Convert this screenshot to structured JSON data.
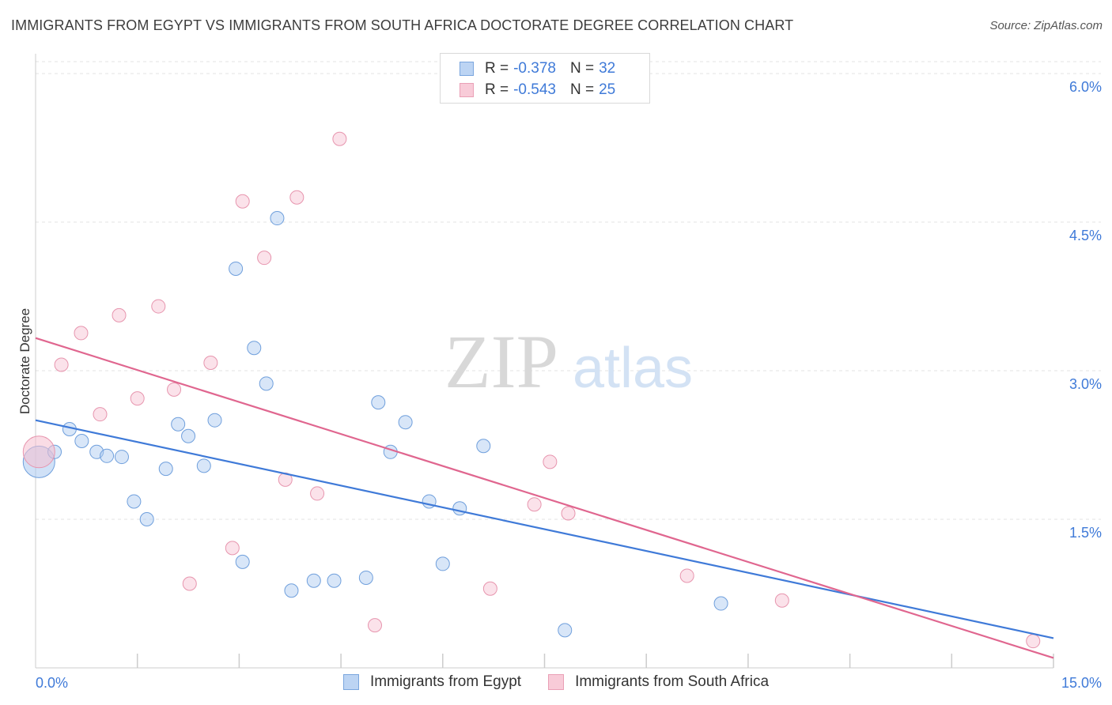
{
  "chart_data": {
    "type": "scatter",
    "title": "IMMIGRANTS FROM EGYPT VS IMMIGRANTS FROM SOUTH AFRICA DOCTORATE DEGREE CORRELATION CHART",
    "source": "Source: ZipAtlas.com",
    "watermark": {
      "zip": "ZIP",
      "atlas": "atlas"
    },
    "xlabel": "",
    "ylabel": "Doctorate Degree",
    "xlim": [
      0,
      15
    ],
    "ylim": [
      0,
      6.2
    ],
    "x_tick_labels": {
      "left": "0.0%",
      "right": "15.0%"
    },
    "y_ticks": [
      {
        "value": 1.5,
        "label": "1.5%"
      },
      {
        "value": 3.0,
        "label": "3.0%"
      },
      {
        "value": 4.5,
        "label": "4.5%"
      },
      {
        "value": 6.0,
        "label": "6.0%"
      }
    ],
    "series": [
      {
        "name": "Immigrants from Egypt",
        "color": "#a9c8f0",
        "stroke": "#6f9fdc",
        "line_color": "#3f7ad8",
        "R": "-0.378",
        "N": "32",
        "trend": {
          "x0": 0.0,
          "y0": 2.5,
          "x1": 15.0,
          "y1": 0.3
        },
        "points": [
          {
            "x": 0.05,
            "y": 2.08,
            "big": true
          },
          {
            "x": 0.28,
            "y": 2.18
          },
          {
            "x": 0.5,
            "y": 2.41
          },
          {
            "x": 0.68,
            "y": 2.29
          },
          {
            "x": 0.9,
            "y": 2.18
          },
          {
            "x": 1.05,
            "y": 2.14
          },
          {
            "x": 1.27,
            "y": 2.13
          },
          {
            "x": 1.45,
            "y": 1.68
          },
          {
            "x": 1.64,
            "y": 1.5
          },
          {
            "x": 1.92,
            "y": 2.01
          },
          {
            "x": 2.1,
            "y": 2.46
          },
          {
            "x": 2.25,
            "y": 2.34
          },
          {
            "x": 2.48,
            "y": 2.04
          },
          {
            "x": 2.64,
            "y": 2.5
          },
          {
            "x": 2.95,
            "y": 4.03
          },
          {
            "x": 3.05,
            "y": 1.07
          },
          {
            "x": 3.22,
            "y": 3.23
          },
          {
            "x": 3.4,
            "y": 2.87
          },
          {
            "x": 3.56,
            "y": 4.54
          },
          {
            "x": 3.77,
            "y": 0.78
          },
          {
            "x": 4.1,
            "y": 0.88
          },
          {
            "x": 4.4,
            "y": 0.88
          },
          {
            "x": 4.87,
            "y": 0.91
          },
          {
            "x": 5.05,
            "y": 2.68
          },
          {
            "x": 5.23,
            "y": 2.18
          },
          {
            "x": 5.45,
            "y": 2.48
          },
          {
            "x": 5.8,
            "y": 1.68
          },
          {
            "x": 6.0,
            "y": 1.05
          },
          {
            "x": 6.25,
            "y": 1.61
          },
          {
            "x": 6.6,
            "y": 2.24
          },
          {
            "x": 7.8,
            "y": 0.38
          },
          {
            "x": 10.1,
            "y": 0.65
          }
        ]
      },
      {
        "name": "Immigrants from South Africa",
        "color": "#f6bfd0",
        "stroke": "#e795ae",
        "line_color": "#e0668f",
        "R": "-0.543",
        "N": "25",
        "trend": {
          "x0": 0.0,
          "y0": 3.33,
          "x1": 15.0,
          "y1": 0.1
        },
        "points": [
          {
            "x": 0.05,
            "y": 2.18,
            "big": true
          },
          {
            "x": 0.38,
            "y": 3.06
          },
          {
            "x": 0.67,
            "y": 3.38
          },
          {
            "x": 0.95,
            "y": 2.56
          },
          {
            "x": 1.23,
            "y": 3.56
          },
          {
            "x": 1.5,
            "y": 2.72
          },
          {
            "x": 1.81,
            "y": 3.65
          },
          {
            "x": 2.04,
            "y": 2.81
          },
          {
            "x": 2.27,
            "y": 0.85
          },
          {
            "x": 2.58,
            "y": 3.08
          },
          {
            "x": 2.9,
            "y": 1.21
          },
          {
            "x": 3.05,
            "y": 4.71
          },
          {
            "x": 3.37,
            "y": 4.14
          },
          {
            "x": 3.68,
            "y": 1.9
          },
          {
            "x": 3.85,
            "y": 4.75
          },
          {
            "x": 4.15,
            "y": 1.76
          },
          {
            "x": 4.48,
            "y": 5.34
          },
          {
            "x": 5.0,
            "y": 0.43
          },
          {
            "x": 6.7,
            "y": 0.8
          },
          {
            "x": 7.35,
            "y": 1.65
          },
          {
            "x": 7.58,
            "y": 2.08
          },
          {
            "x": 7.85,
            "y": 1.56
          },
          {
            "x": 9.6,
            "y": 0.93
          },
          {
            "x": 11.0,
            "y": 0.68
          },
          {
            "x": 14.7,
            "y": 0.27
          }
        ]
      }
    ]
  },
  "legend": {
    "r_label": "R =",
    "n_label": "N ="
  }
}
